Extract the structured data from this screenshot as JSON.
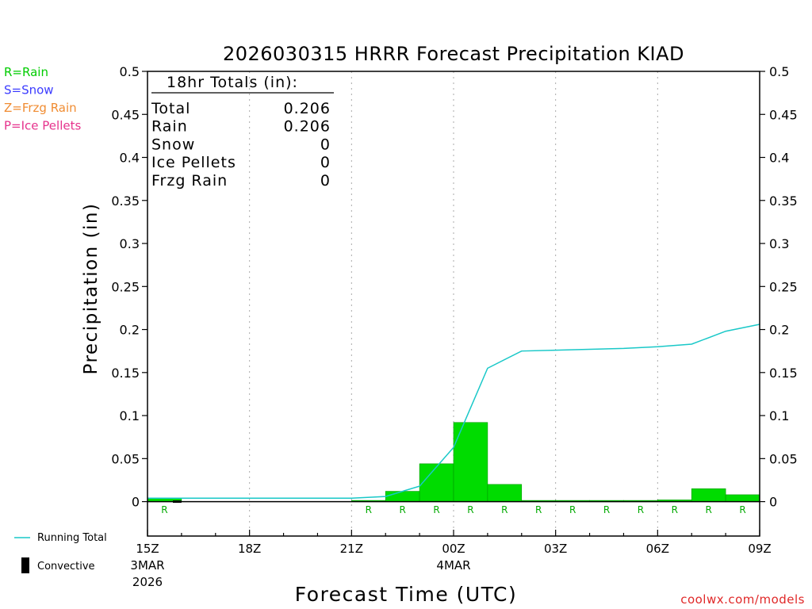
{
  "chart_data": {
    "type": "bar",
    "title": "2026030315 HRRR Forecast Precipitation KIAD",
    "xlabel": "Forecast Time (UTC)",
    "ylabel": "Precipitation (in)",
    "ylim": [
      -0.04,
      0.5
    ],
    "grid": "vertical dotted",
    "y_ticks": [
      "0",
      "0.05",
      "0.1",
      "0.15",
      "0.2",
      "0.25",
      "0.3",
      "0.35",
      "0.4",
      "0.45",
      "0.5"
    ],
    "x_ticks": [
      {
        "hour": 0,
        "label": "15Z",
        "sub1": "3MAR",
        "sub2": "2026"
      },
      {
        "hour": 3,
        "label": "18Z",
        "sub1": "",
        "sub2": ""
      },
      {
        "hour": 6,
        "label": "21Z",
        "sub1": "",
        "sub2": ""
      },
      {
        "hour": 9,
        "label": "00Z",
        "sub1": "4MAR",
        "sub2": ""
      },
      {
        "hour": 12,
        "label": "03Z",
        "sub1": "",
        "sub2": ""
      },
      {
        "hour": 15,
        "label": "06Z",
        "sub1": "",
        "sub2": ""
      },
      {
        "hour": 18,
        "label": "09Z",
        "sub1": "",
        "sub2": ""
      }
    ],
    "hourly_hours": [
      1,
      2,
      3,
      4,
      5,
      6,
      7,
      8,
      9,
      10,
      11,
      12,
      13,
      14,
      15,
      16,
      17,
      18
    ],
    "hourly_precip": [
      0.004,
      0,
      0,
      0,
      0,
      0,
      0.001,
      0.012,
      0.044,
      0.092,
      0.02,
      0.001,
      0.0005,
      0.0005,
      0.001,
      0.002,
      0.015,
      0.008
    ],
    "precip_type_labels": [
      "R",
      "",
      "",
      "",
      "",
      "",
      "R",
      "R",
      "R",
      "R",
      "R",
      "R",
      "R",
      "R",
      "R",
      "R",
      "R",
      "R"
    ],
    "running_total_hours": [
      0,
      1,
      2,
      3,
      4,
      5,
      6,
      7,
      8,
      9,
      10,
      11,
      12,
      13,
      14,
      15,
      16,
      17,
      18
    ],
    "running_total": [
      0.004,
      0.004,
      0.004,
      0.004,
      0.004,
      0.004,
      0.004,
      0.006,
      0.018,
      0.063,
      0.155,
      0.175,
      0.176,
      0.177,
      0.178,
      0.18,
      0.183,
      0.198,
      0.206
    ],
    "totals_box": {
      "heading": "18hr Totals (in):",
      "rows": [
        {
          "label": "Total",
          "value": "0.206"
        },
        {
          "label": "Rain",
          "value": "0.206"
        },
        {
          "label": "Snow",
          "value": "0"
        },
        {
          "label": "Ice Pellets",
          "value": "0"
        },
        {
          "label": "Frzg Rain",
          "value": "0"
        }
      ]
    },
    "type_legend": [
      {
        "text": "R=Rain",
        "color": "#00cc00"
      },
      {
        "text": "S=Snow",
        "color": "#3c3cff"
      },
      {
        "text": "Z=Frzg Rain",
        "color": "#f08c32"
      },
      {
        "text": "P=Ice Pellets",
        "color": "#e6328c"
      }
    ],
    "series_legend": [
      {
        "text": "Running Total",
        "color": "#19c8c8"
      },
      {
        "text": "Convective",
        "color": "#000000"
      }
    ],
    "credit": "coolwx.com/models",
    "colors": {
      "bar": "#00dc00",
      "line": "#19c8c8",
      "rain_label": "#00aa00",
      "grid": "#aaaaaa",
      "credit": "#e02828"
    }
  }
}
